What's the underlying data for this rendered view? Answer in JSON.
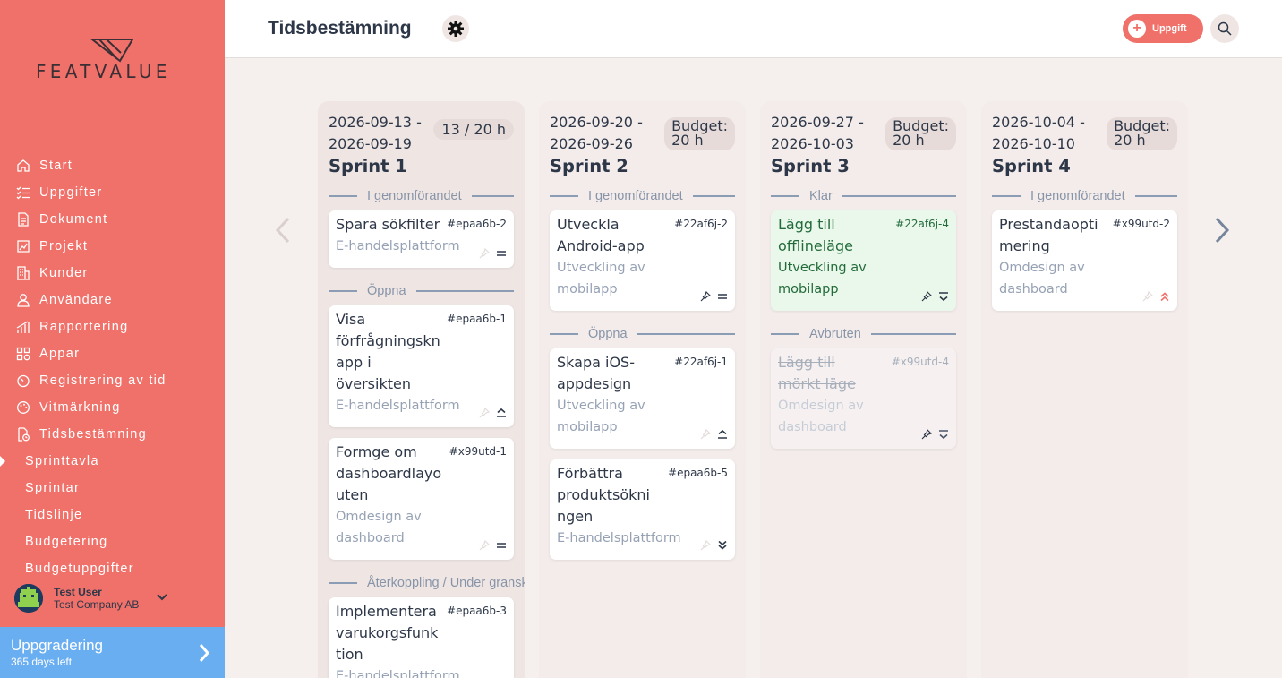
{
  "app": {
    "logo_text": "FEATVALUE"
  },
  "sidebar": {
    "items": [
      {
        "label": "Start",
        "icon": "home-icon"
      },
      {
        "label": "Uppgifter",
        "icon": "tasks-icon"
      },
      {
        "label": "Dokument",
        "icon": "document-icon"
      },
      {
        "label": "Projekt",
        "icon": "project-icon"
      },
      {
        "label": "Kunder",
        "icon": "building-icon"
      },
      {
        "label": "Användare",
        "icon": "user-icon"
      },
      {
        "label": "Rapportering",
        "icon": "chart-icon"
      },
      {
        "label": "Appar",
        "icon": "apps-icon"
      },
      {
        "label": "Registrering av tid",
        "icon": "timer-icon"
      },
      {
        "label": "Vitmärkning",
        "icon": "palette-icon"
      },
      {
        "label": "Tidsbestämning",
        "icon": "calendar-clock-icon"
      }
    ],
    "subitems": [
      {
        "label": "Sprinttavla",
        "active": true
      },
      {
        "label": "Sprintar"
      },
      {
        "label": "Tidslinje"
      },
      {
        "label": "Budgetering"
      },
      {
        "label": "Budgetuppgifter"
      }
    ],
    "user": {
      "name": "Test User",
      "company": "Test Company AB"
    },
    "upgrade": {
      "title": "Uppgradering",
      "subtitle": "365 days left"
    }
  },
  "header": {
    "title": "Tidsbestämning",
    "add_task_label": "Uppgift"
  },
  "colors": {
    "accent": "#f0716a",
    "upgrade": "#6aaef2",
    "priority_high": "#f0716a"
  },
  "columns": [
    {
      "dates": [
        "2026-09-13 -",
        "2026-09-19"
      ],
      "badge": [
        "13 / 20 h"
      ],
      "title": "Sprint 1",
      "sections": [
        {
          "label": "I genomförandet",
          "cards": [
            {
              "title": [
                "Spara sökfilter"
              ],
              "id": "#epaa6b-2",
              "project": [
                "E-handelsplattform"
              ],
              "priority": "medium"
            }
          ]
        },
        {
          "label": "Öppna",
          "cards": [
            {
              "title": [
                "Visa",
                "förfrågningskn",
                "app i",
                "översikten"
              ],
              "id": "#epaa6b-1",
              "project": [
                "E-handelsplattform"
              ],
              "priority": "high"
            },
            {
              "title": [
                "Formge om",
                "dashboardlayo",
                "uten"
              ],
              "id": "#x99utd-1",
              "project": [
                "Omdesign av",
                "dashboard"
              ],
              "priority": "medium"
            }
          ]
        },
        {
          "label": "Återkoppling / Under granskning",
          "cards": [
            {
              "title": [
                "Implementera",
                "varukorgsfunk",
                "tion"
              ],
              "id": "#epaa6b-3",
              "project": [
                "E-handelsplattform"
              ],
              "priority": "highest"
            }
          ]
        }
      ]
    },
    {
      "dates": [
        "2026-09-20 -",
        "2026-09-26"
      ],
      "badge": [
        "Budget:",
        "20 h"
      ],
      "title": "Sprint 2",
      "sections": [
        {
          "label": "I genomförandet",
          "cards": [
            {
              "title": [
                "Utveckla",
                "Android-app"
              ],
              "id": "#22af6j-2",
              "project": [
                "Utveckling av",
                "mobilapp"
              ],
              "priority": "medium",
              "pinned": true
            }
          ]
        },
        {
          "label": "Öppna",
          "cards": [
            {
              "title": [
                "Skapa iOS-",
                "appdesign"
              ],
              "id": "#22af6j-1",
              "project": [
                "Utveckling av",
                "mobilapp"
              ],
              "priority": "high"
            },
            {
              "title": [
                "Förbättra",
                "produktsökni",
                "ngen"
              ],
              "id": "#epaa6b-5",
              "project": [
                "E-handelsplattform"
              ],
              "priority": "lowest"
            }
          ]
        }
      ]
    },
    {
      "dates": [
        "2026-09-27 -",
        "2026-10-03"
      ],
      "badge": [
        "Budget:",
        "20 h"
      ],
      "title": "Sprint 3",
      "sections": [
        {
          "label": "Klar",
          "cards": [
            {
              "title": [
                "Lägg till",
                "offlineläge"
              ],
              "id": "#22af6j-4",
              "project": [
                "Utveckling av",
                "mobilapp"
              ],
              "priority": "low",
              "pinned": true,
              "state": "done"
            }
          ]
        },
        {
          "label": "Avbruten",
          "cards": [
            {
              "title": [
                "Lägg till",
                "mörkt läge"
              ],
              "id": "#x99utd-4",
              "project": [
                "Omdesign av",
                "dashboard"
              ],
              "priority": "low",
              "pinned": true,
              "state": "cancelled"
            }
          ]
        }
      ]
    },
    {
      "dates": [
        "2026-10-04 -",
        "2026-10-10"
      ],
      "badge": [
        "Budget:",
        "20 h"
      ],
      "title": "Sprint 4",
      "sections": [
        {
          "label": "I genomförandet",
          "cards": [
            {
              "title": [
                "Prestandaopti",
                "mering"
              ],
              "id": "#x99utd-2",
              "project": [
                "Omdesign av",
                "dashboard"
              ],
              "priority": "highest"
            }
          ]
        }
      ]
    }
  ]
}
